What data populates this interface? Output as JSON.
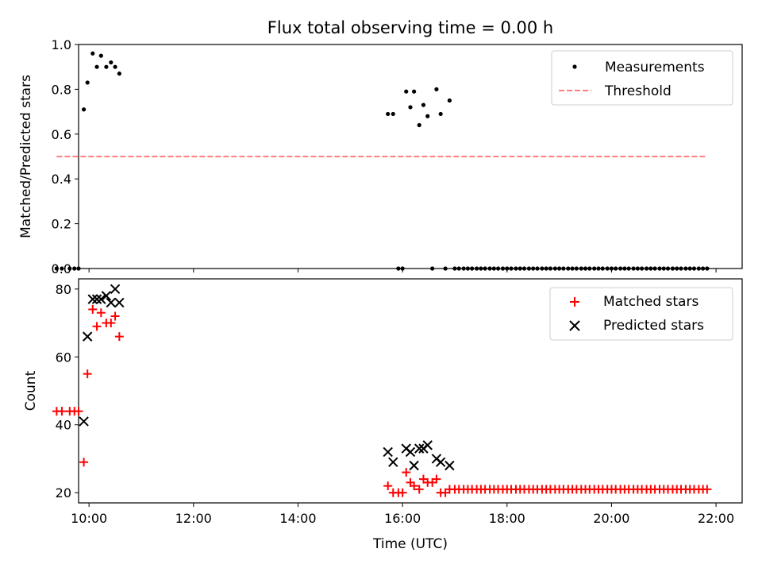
{
  "figure_title": "Flux total observing time = 0.00 h",
  "chart_data": [
    {
      "type": "scatter",
      "ylabel": "Matched/Predicted stars",
      "xlabel": "",
      "xlim": [
        9.8,
        22.5
      ],
      "ylim": [
        0,
        1.0
      ],
      "x_ticks": [
        10,
        12,
        14,
        16,
        18,
        20,
        22
      ],
      "y_ticks": [
        0.0,
        0.2,
        0.4,
        0.6,
        0.8,
        1.0
      ],
      "y_tick_labels": [
        "0.0",
        "0.2",
        "0.4",
        "0.6",
        "0.8",
        "1.0"
      ],
      "legend_position": "upper right",
      "colors": {
        "Measurements": "#000000",
        "Threshold": "#ff7f7f"
      },
      "series": [
        {
          "name": "Measurements",
          "marker": "dot",
          "x": [
            9.38,
            9.48,
            9.63,
            9.72,
            9.8,
            9.9,
            9.97,
            10.07,
            10.15,
            10.23,
            10.33,
            10.42,
            10.5,
            10.58,
            15.72,
            15.82,
            15.92,
            16.0,
            16.07,
            16.15,
            16.22,
            16.32,
            16.4,
            16.48,
            16.57,
            16.65,
            16.73,
            16.82,
            16.9,
            17.0,
            17.08,
            17.17,
            17.25,
            17.33,
            17.42,
            17.5,
            17.58,
            17.67,
            17.75,
            17.83,
            17.92,
            18.0,
            18.08,
            18.17,
            18.25,
            18.33,
            18.42,
            18.5,
            18.58,
            18.67,
            18.75,
            18.83,
            18.92,
            19.0,
            19.08,
            19.17,
            19.25,
            19.33,
            19.42,
            19.5,
            19.58,
            19.67,
            19.75,
            19.83,
            19.92,
            20.0,
            20.08,
            20.17,
            20.25,
            20.33,
            20.42,
            20.5,
            20.58,
            20.67,
            20.75,
            20.83,
            20.92,
            21.0,
            21.08,
            21.17,
            21.25,
            21.33,
            21.42,
            21.5,
            21.58,
            21.67,
            21.75,
            21.83
          ],
          "y": [
            0,
            0,
            0,
            0,
            0,
            0.71,
            0.83,
            0.96,
            0.9,
            0.95,
            0.9,
            0.92,
            0.9,
            0.87,
            0.69,
            0.69,
            0,
            0,
            0.79,
            0.72,
            0.79,
            0.64,
            0.73,
            0.68,
            0,
            0.8,
            0.69,
            0,
            0.75,
            0,
            0,
            0,
            0,
            0,
            0,
            0,
            0,
            0,
            0,
            0,
            0,
            0,
            0,
            0,
            0,
            0,
            0,
            0,
            0,
            0,
            0,
            0,
            0,
            0,
            0,
            0,
            0,
            0,
            0,
            0,
            0,
            0,
            0,
            0,
            0,
            0,
            0,
            0,
            0,
            0,
            0,
            0,
            0,
            0,
            0,
            0,
            0,
            0,
            0,
            0,
            0,
            0,
            0,
            0,
            0,
            0,
            0,
            0
          ]
        },
        {
          "name": "Threshold",
          "marker": "dashed-line",
          "x": [
            9.38,
            21.83
          ],
          "y": [
            0.5,
            0.5
          ]
        }
      ]
    },
    {
      "type": "scatter",
      "ylabel": "Count",
      "xlabel": "Time (UTC)",
      "xlim": [
        9.8,
        22.5
      ],
      "ylim": [
        17,
        83
      ],
      "x_ticks": [
        10,
        12,
        14,
        16,
        18,
        20,
        22
      ],
      "x_tick_labels": [
        "10:00",
        "12:00",
        "14:00",
        "16:00",
        "18:00",
        "20:00",
        "22:00"
      ],
      "y_ticks": [
        20,
        40,
        60,
        80
      ],
      "y_tick_labels": [
        "20",
        "40",
        "60",
        "80"
      ],
      "legend_position": "upper right",
      "colors": {
        "Matched stars": "#ff0000",
        "Predicted stars": "#000000"
      },
      "series": [
        {
          "name": "Matched stars",
          "marker": "plus",
          "x": [
            9.38,
            9.48,
            9.63,
            9.72,
            9.8,
            9.9,
            9.97,
            10.07,
            10.15,
            10.23,
            10.33,
            10.42,
            10.5,
            10.58,
            15.72,
            15.82,
            15.92,
            16.0,
            16.07,
            16.15,
            16.22,
            16.32,
            16.4,
            16.48,
            16.57,
            16.65,
            16.73,
            16.82,
            16.9,
            17.0,
            17.08,
            17.17,
            17.25,
            17.33,
            17.42,
            17.5,
            17.58,
            17.67,
            17.75,
            17.83,
            17.92,
            18.0,
            18.08,
            18.17,
            18.25,
            18.33,
            18.42,
            18.5,
            18.58,
            18.67,
            18.75,
            18.83,
            18.92,
            19.0,
            19.08,
            19.17,
            19.25,
            19.33,
            19.42,
            19.5,
            19.58,
            19.67,
            19.75,
            19.83,
            19.92,
            20.0,
            20.08,
            20.17,
            20.25,
            20.33,
            20.42,
            20.5,
            20.58,
            20.67,
            20.75,
            20.83,
            20.92,
            21.0,
            21.08,
            21.17,
            21.25,
            21.33,
            21.42,
            21.5,
            21.58,
            21.67,
            21.75,
            21.83
          ],
          "y": [
            44,
            44,
            44,
            44,
            44,
            29,
            55,
            74,
            69,
            73,
            70,
            70,
            72,
            66,
            22,
            20,
            20,
            20,
            26,
            23,
            22,
            21,
            24,
            23,
            23,
            24,
            20,
            20,
            21,
            21,
            21,
            21,
            21,
            21,
            21,
            21,
            21,
            21,
            21,
            21,
            21,
            21,
            21,
            21,
            21,
            21,
            21,
            21,
            21,
            21,
            21,
            21,
            21,
            21,
            21,
            21,
            21,
            21,
            21,
            21,
            21,
            21,
            21,
            21,
            21,
            21,
            21,
            21,
            21,
            21,
            21,
            21,
            21,
            21,
            21,
            21,
            21,
            21,
            21,
            21,
            21,
            21,
            21,
            21,
            21,
            21,
            21,
            21
          ]
        },
        {
          "name": "Predicted stars",
          "marker": "x",
          "x": [
            9.9,
            9.97,
            10.07,
            10.15,
            10.23,
            10.33,
            10.42,
            10.5,
            10.58,
            15.72,
            15.82,
            16.07,
            16.15,
            16.22,
            16.32,
            16.4,
            16.48,
            16.65,
            16.73,
            16.9
          ],
          "y": [
            41,
            66,
            77,
            77,
            77,
            78,
            76,
            80,
            76,
            32,
            29,
            33,
            32,
            28,
            33,
            33,
            34,
            30,
            29,
            28
          ]
        }
      ]
    }
  ]
}
